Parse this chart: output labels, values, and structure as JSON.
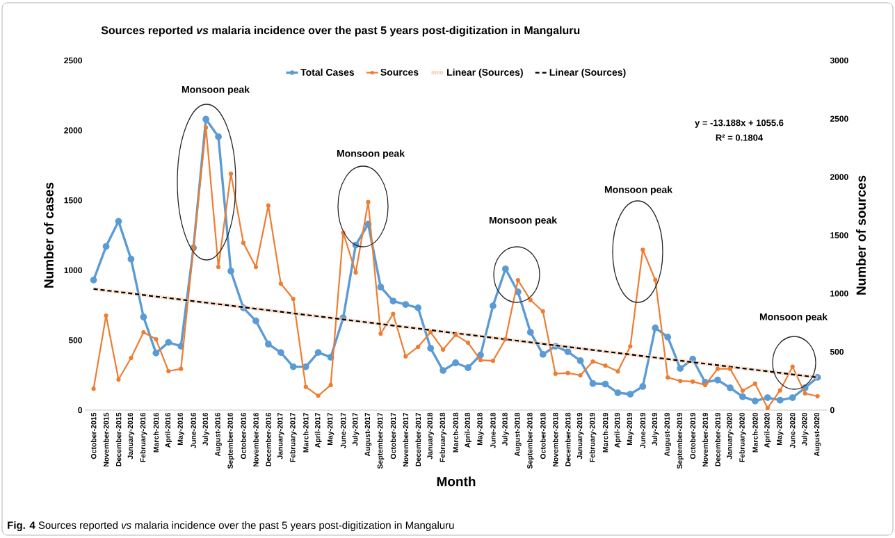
{
  "chart_data": {
    "type": "line",
    "title": "Sources reported *vs* malaria incidence over the past 5 years post-digitization in Mangaluru",
    "xlabel": "Month",
    "ylabel": "Number of cases",
    "y2label": "Number of sources",
    "categories": [
      "October-2015",
      "November-2015",
      "December-2015",
      "January-2016",
      "February-2016",
      "March-2016",
      "April-2016",
      "May-2016",
      "June-2016",
      "July-2016",
      "August-2016",
      "September-2016",
      "October-2016",
      "November-2016",
      "December-2016",
      "January-2017",
      "February-2017",
      "March-2017",
      "April-2017",
      "May-2017",
      "June-2017",
      "July-2017",
      "August-2017",
      "September-2017",
      "October-2017",
      "November-2017",
      "December-2017",
      "January-2018",
      "February-2018",
      "March-2018",
      "April-2018",
      "May-2018",
      "June-2018",
      "July-2018",
      "August-2018",
      "September-2018",
      "October-2018",
      "November-2018",
      "December-2018",
      "January-2019",
      "February-2019",
      "March-2019",
      "April-2019",
      "May-2019",
      "June-2019",
      "July-2019",
      "August-2019",
      "September-2019",
      "October-2019",
      "November-2019",
      "December-2019",
      "January-2020",
      "February-2020",
      "March-2020",
      "April-2020",
      "May-2020",
      "June-2020",
      "July-2020",
      "August-2020"
    ],
    "series": [
      {
        "name": "Total Cases",
        "color": "#5b9bd5",
        "values": [
          930,
          1170,
          1350,
          1080,
          666,
          408,
          484,
          457,
          1160,
          2080,
          1955,
          994,
          731,
          638,
          472,
          412,
          310,
          310,
          412,
          378,
          660,
          1180,
          1330,
          880,
          780,
          755,
          731,
          442,
          283,
          338,
          303,
          394,
          746,
          1010,
          845,
          557,
          398,
          457,
          417,
          353,
          190,
          186,
          124,
          114,
          169,
          588,
          522,
          298,
          364,
          199,
          215,
          159,
          96,
          65,
          89,
          71,
          89,
          159,
          234
        ]
      },
      {
        "name": "Sources",
        "color": "#ed7d31",
        "axis": "y2",
        "values": [
          183,
          811,
          262,
          447,
          668,
          608,
          334,
          354,
          1391,
          2425,
          1228,
          2028,
          1435,
          1228,
          1755,
          1085,
          954,
          199,
          123,
          215,
          1521,
          1181,
          1785,
          656,
          825,
          461,
          543,
          668,
          519,
          646,
          578,
          429,
          423,
          608,
          1115,
          944,
          847,
          312,
          318,
          298,
          417,
          382,
          332,
          547,
          1376,
          1117,
          280,
          250,
          245,
          215,
          354,
          354,
          167,
          227,
          18,
          169,
          372,
          143,
          119
        ]
      },
      {
        "name": "Linear (Sources)",
        "type": "line",
        "color": "#f8cbad",
        "line_style": "dotted",
        "marker": "none",
        "axis": "y2",
        "values": [
          1040,
          null,
          null,
          null,
          null,
          null,
          null,
          null,
          null,
          null,
          null,
          null,
          null,
          null,
          null,
          null,
          null,
          null,
          null,
          null,
          null,
          null,
          null,
          null,
          null,
          null,
          null,
          null,
          null,
          null,
          null,
          null,
          null,
          null,
          null,
          null,
          null,
          null,
          null,
          null,
          null,
          null,
          null,
          null,
          null,
          null,
          null,
          null,
          null,
          null,
          null,
          null,
          null,
          null,
          null,
          null,
          null,
          null,
          280
        ]
      },
      {
        "name": "Linear (Sources)",
        "type": "line",
        "color": "#000000",
        "line_style": "dashed",
        "marker": "none",
        "axis": "y2",
        "values": [
          1040,
          null,
          null,
          null,
          null,
          null,
          null,
          null,
          null,
          null,
          null,
          null,
          null,
          null,
          null,
          null,
          null,
          null,
          null,
          null,
          null,
          null,
          null,
          null,
          null,
          null,
          null,
          null,
          null,
          null,
          null,
          null,
          null,
          null,
          null,
          null,
          null,
          null,
          null,
          null,
          null,
          null,
          null,
          null,
          null,
          null,
          null,
          null,
          null,
          null,
          null,
          null,
          null,
          null,
          null,
          null,
          null,
          null,
          280
        ]
      }
    ],
    "ylim": [
      0,
      2500
    ],
    "yticks": [
      0,
      500,
      1000,
      1500,
      2000,
      2500
    ],
    "y2lim": [
      0,
      3000
    ],
    "y2ticks": [
      0,
      500,
      1000,
      1500,
      2000,
      2500,
      3000
    ],
    "marker": "circle",
    "line_style": "solid",
    "legend": "top",
    "annotations": [
      "Monsoon peak",
      "Monsoon peak",
      "Monsoon peak",
      "Monsoon peak",
      "Monsoon peak",
      "y = -13.188x + 1055.6",
      "R² = 0.1804",
      "**Fig. 4** Sources reported *vs* malaria incidence over the past 5 years post-digitization in Mangaluru"
    ]
  }
}
